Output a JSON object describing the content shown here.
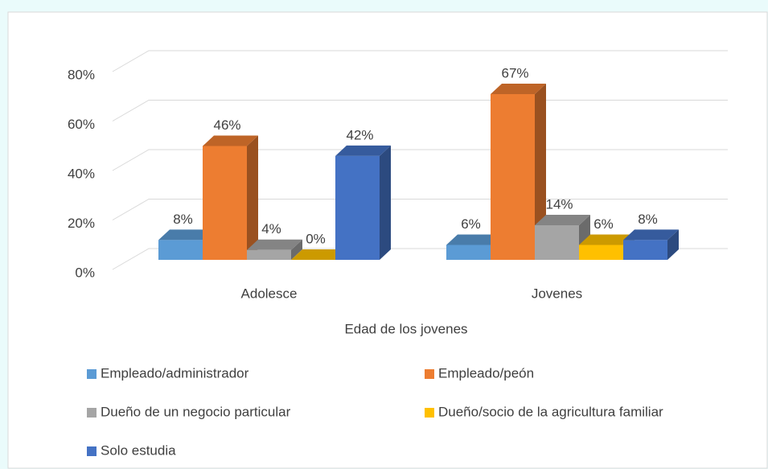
{
  "chart_data": {
    "type": "bar3d",
    "x_label": "Edad de los jovenes",
    "categories": [
      "Adolesce",
      "Jovenes"
    ],
    "series": [
      {
        "name": "Empleado/administrador",
        "color": "#5b9bd5",
        "values": [
          8,
          6
        ],
        "value_labels": [
          "8%",
          "6%"
        ]
      },
      {
        "name": "Empleado/peón",
        "color": "#ed7d31",
        "values": [
          46,
          67
        ],
        "value_labels": [
          "46%",
          "67%"
        ]
      },
      {
        "name": "Dueño de un negocio particular",
        "color": "#a5a5a5",
        "values": [
          4,
          14
        ],
        "value_labels": [
          "4%",
          "14%"
        ]
      },
      {
        "name": "Dueño/socio de la agricultura familiar",
        "color": "#ffc000",
        "values": [
          0,
          6
        ],
        "value_labels": [
          "0%",
          "6%"
        ]
      },
      {
        "name": "Solo estudia",
        "color": "#4472c4",
        "values": [
          42,
          8
        ],
        "value_labels": [
          "42%",
          "8%"
        ]
      }
    ],
    "ylim": [
      0,
      80
    ],
    "yticks": [
      {
        "value": 0,
        "label": "0%"
      },
      {
        "value": 20,
        "label": "20%"
      },
      {
        "value": 40,
        "label": "40%"
      },
      {
        "value": 60,
        "label": "60%"
      },
      {
        "value": 80,
        "label": "80%"
      }
    ],
    "grid": true
  }
}
